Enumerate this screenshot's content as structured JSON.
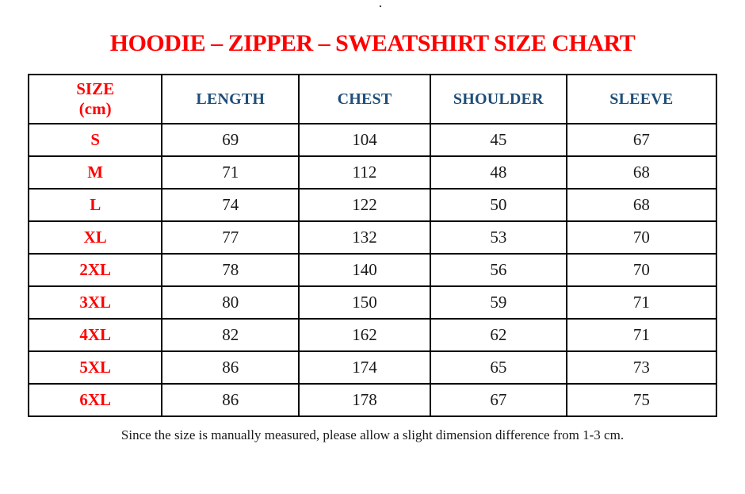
{
  "page": {
    "top_dot": ".",
    "title": "HOODIE – ZIPPER – SWEATSHIRT SIZE CHART",
    "footnote": "Since the size is manually measured, please allow a slight dimension difference from 1-3 cm."
  },
  "colors": {
    "title_red": "#ff0000",
    "header_blue": "#1f4e79",
    "size_red": "#ff0000",
    "body_black": "#1a1a1a",
    "border_black": "#000000",
    "page_bg": "#ffffff"
  },
  "table": {
    "header": {
      "size_line1": "SIZE",
      "size_line2": "(cm)",
      "columns": [
        "LENGTH",
        "CHEST",
        "SHOULDER",
        "SLEEVE"
      ]
    },
    "rows": [
      {
        "size": "S",
        "length": "69",
        "chest": "104",
        "shoulder": "45",
        "sleeve": "67"
      },
      {
        "size": "M",
        "length": "71",
        "chest": "112",
        "shoulder": "48",
        "sleeve": "68"
      },
      {
        "size": "L",
        "length": "74",
        "chest": "122",
        "shoulder": "50",
        "sleeve": "68"
      },
      {
        "size": "XL",
        "length": "77",
        "chest": "132",
        "shoulder": "53",
        "sleeve": "70"
      },
      {
        "size": "2XL",
        "length": "78",
        "chest": "140",
        "shoulder": "56",
        "sleeve": "70"
      },
      {
        "size": "3XL",
        "length": "80",
        "chest": "150",
        "shoulder": "59",
        "sleeve": "71"
      },
      {
        "size": "4XL",
        "length": "82",
        "chest": "162",
        "shoulder": "62",
        "sleeve": "71"
      },
      {
        "size": "5XL",
        "length": "86",
        "chest": "174",
        "shoulder": "65",
        "sleeve": "73"
      },
      {
        "size": "6XL",
        "length": "86",
        "chest": "178",
        "shoulder": "67",
        "sleeve": "75"
      }
    ]
  },
  "chart_data": {
    "type": "table",
    "title": "HOODIE – ZIPPER – SWEATSHIRT SIZE CHART",
    "unit": "cm",
    "columns": [
      "SIZE (cm)",
      "LENGTH",
      "CHEST",
      "SHOULDER",
      "SLEEVE"
    ],
    "rows": [
      [
        "S",
        69,
        104,
        45,
        67
      ],
      [
        "M",
        71,
        112,
        48,
        68
      ],
      [
        "L",
        74,
        122,
        50,
        68
      ],
      [
        "XL",
        77,
        132,
        53,
        70
      ],
      [
        "2XL",
        78,
        140,
        56,
        70
      ],
      [
        "3XL",
        80,
        150,
        59,
        71
      ],
      [
        "4XL",
        82,
        162,
        62,
        71
      ],
      [
        "5XL",
        86,
        174,
        65,
        73
      ],
      [
        "6XL",
        86,
        178,
        67,
        75
      ]
    ],
    "note": "Since the size is manually measured, please allow a slight dimension difference from 1-3 cm."
  }
}
